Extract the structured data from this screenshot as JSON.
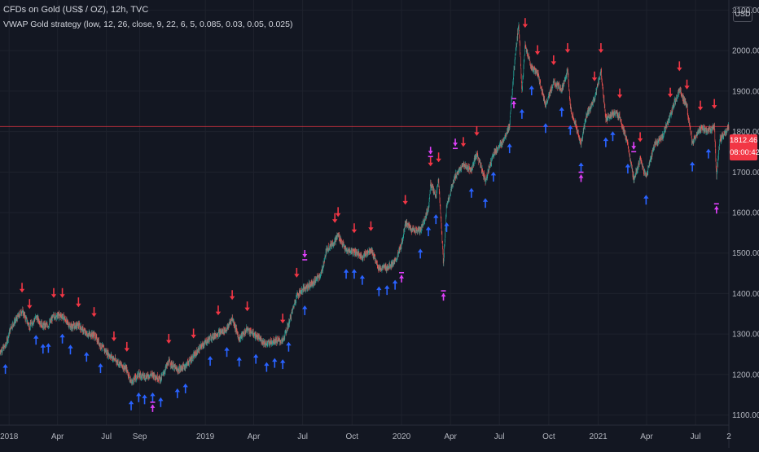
{
  "header": {
    "title": "CFDs on Gold (US$ / OZ), 12h, TVC",
    "indicator": "VWAP Gold strategy (low, 12, 26, close, 9, 22, 6, 5, 0.085, 0.03, 0.05, 0.025)"
  },
  "currency_button": "USD",
  "last_price": {
    "price": "1812.46",
    "countdown": "08:00:42"
  },
  "colors": {
    "background": "#131722",
    "grid": "#1e222d",
    "up": "#26a69a",
    "down": "#ef5350",
    "buy_arrow": "#2962ff",
    "sell_arrow": "#f23645",
    "exit_marker": "#e040fb",
    "price_line": "#f23645"
  },
  "chart_data": {
    "type": "line",
    "series": [
      {
        "values": [
          [
            "2017-12-15",
            1257
          ],
          [
            "2017-12-25",
            1270
          ],
          [
            "2018-01-05",
            1320
          ],
          [
            "2018-01-15",
            1337
          ],
          [
            "2018-01-25",
            1358
          ],
          [
            "2018-02-08",
            1318
          ],
          [
            "2018-02-20",
            1342
          ],
          [
            "2018-03-05",
            1320
          ],
          [
            "2018-03-15",
            1322
          ],
          [
            "2018-03-25",
            1345
          ],
          [
            "2018-04-10",
            1345
          ],
          [
            "2018-04-25",
            1318
          ],
          [
            "2018-05-10",
            1322
          ],
          [
            "2018-05-25",
            1300
          ],
          [
            "2018-06-08",
            1298
          ],
          [
            "2018-06-20",
            1272
          ],
          [
            "2018-07-01",
            1255
          ],
          [
            "2018-07-15",
            1238
          ],
          [
            "2018-07-30",
            1222
          ],
          [
            "2018-08-08",
            1212
          ],
          [
            "2018-08-16",
            1180
          ],
          [
            "2018-08-30",
            1200
          ],
          [
            "2018-09-10",
            1195
          ],
          [
            "2018-09-25",
            1200
          ],
          [
            "2018-10-10",
            1188
          ],
          [
            "2018-10-25",
            1232
          ],
          [
            "2018-11-10",
            1210
          ],
          [
            "2018-11-25",
            1222
          ],
          [
            "2018-12-10",
            1245
          ],
          [
            "2018-12-25",
            1270
          ],
          [
            "2019-01-10",
            1290
          ],
          [
            "2019-01-25",
            1302
          ],
          [
            "2019-02-10",
            1312
          ],
          [
            "2019-02-20",
            1340
          ],
          [
            "2019-03-05",
            1288
          ],
          [
            "2019-03-20",
            1312
          ],
          [
            "2019-04-05",
            1295
          ],
          [
            "2019-04-25",
            1275
          ],
          [
            "2019-05-10",
            1285
          ],
          [
            "2019-05-25",
            1282
          ],
          [
            "2019-06-05",
            1325
          ],
          [
            "2019-06-20",
            1395
          ],
          [
            "2019-07-05",
            1415
          ],
          [
            "2019-07-20",
            1425
          ],
          [
            "2019-08-05",
            1450
          ],
          [
            "2019-08-15",
            1510
          ],
          [
            "2019-08-30",
            1530
          ],
          [
            "2019-09-05",
            1545
          ],
          [
            "2019-09-20",
            1505
          ],
          [
            "2019-10-05",
            1505
          ],
          [
            "2019-10-20",
            1490
          ],
          [
            "2019-11-05",
            1510
          ],
          [
            "2019-11-20",
            1462
          ],
          [
            "2019-12-05",
            1465
          ],
          [
            "2019-12-20",
            1478
          ],
          [
            "2020-01-01",
            1520
          ],
          [
            "2020-01-08",
            1575
          ],
          [
            "2020-01-20",
            1558
          ],
          [
            "2020-02-05",
            1555
          ],
          [
            "2020-02-20",
            1610
          ],
          [
            "2020-02-24",
            1670
          ],
          [
            "2020-03-05",
            1640
          ],
          [
            "2020-03-10",
            1680
          ],
          [
            "2020-03-19",
            1475
          ],
          [
            "2020-03-25",
            1620
          ],
          [
            "2020-04-10",
            1690
          ],
          [
            "2020-04-25",
            1718
          ],
          [
            "2020-05-10",
            1705
          ],
          [
            "2020-05-20",
            1745
          ],
          [
            "2020-06-05",
            1680
          ],
          [
            "2020-06-20",
            1745
          ],
          [
            "2020-07-05",
            1770
          ],
          [
            "2020-07-20",
            1815
          ],
          [
            "2020-07-28",
            1950
          ],
          [
            "2020-08-06",
            2068
          ],
          [
            "2020-08-12",
            1900
          ],
          [
            "2020-08-18",
            2012
          ],
          [
            "2020-08-30",
            1958
          ],
          [
            "2020-09-10",
            1945
          ],
          [
            "2020-09-25",
            1865
          ],
          [
            "2020-10-10",
            1920
          ],
          [
            "2020-10-25",
            1905
          ],
          [
            "2020-11-05",
            1950
          ],
          [
            "2020-11-10",
            1860
          ],
          [
            "2020-11-30",
            1768
          ],
          [
            "2020-12-10",
            1840
          ],
          [
            "2020-12-25",
            1880
          ],
          [
            "2021-01-06",
            1950
          ],
          [
            "2021-01-15",
            1830
          ],
          [
            "2021-01-28",
            1845
          ],
          [
            "2021-02-10",
            1838
          ],
          [
            "2021-02-25",
            1765
          ],
          [
            "2021-03-08",
            1682
          ],
          [
            "2021-03-20",
            1730
          ],
          [
            "2021-03-31",
            1688
          ],
          [
            "2021-04-15",
            1768
          ],
          [
            "2021-05-01",
            1790
          ],
          [
            "2021-05-15",
            1840
          ],
          [
            "2021-06-01",
            1905
          ],
          [
            "2021-06-15",
            1860
          ],
          [
            "2021-06-25",
            1770
          ],
          [
            "2021-07-10",
            1808
          ],
          [
            "2021-07-25",
            1802
          ],
          [
            "2021-08-05",
            1812
          ],
          [
            "2021-08-09",
            1690
          ],
          [
            "2021-08-15",
            1780
          ],
          [
            "2021-08-25",
            1795
          ],
          [
            "2021-09-01",
            1812
          ]
        ]
      }
    ],
    "xlim": [
      "2017-12-15",
      "2021-09-01"
    ],
    "ylim": [
      1075,
      2125
    ],
    "x_ticks": [
      [
        "2018-01-01",
        "2018"
      ],
      [
        "2018-04-01",
        "Apr"
      ],
      [
        "2018-07-01",
        "Jul"
      ],
      [
        "2018-09-01",
        "Sep"
      ],
      [
        "2019-01-01",
        "2019"
      ],
      [
        "2019-04-01",
        "Apr"
      ],
      [
        "2019-07-01",
        "Jul"
      ],
      [
        "2019-10-01",
        "Oct"
      ],
      [
        "2020-01-01",
        "2020"
      ],
      [
        "2020-04-01",
        "Apr"
      ],
      [
        "2020-07-01",
        "Jul"
      ],
      [
        "2020-10-01",
        "Oct"
      ],
      [
        "2021-01-01",
        "2021"
      ],
      [
        "2021-04-01",
        "Apr"
      ],
      [
        "2021-07-01",
        "Jul"
      ],
      [
        "2021-09-01",
        "2"
      ]
    ],
    "y_ticks": [
      1100.0,
      1200.0,
      1300.0,
      1400.0,
      1500.0,
      1600.0,
      1700.0,
      1800.0,
      1900.0,
      2000.0,
      2100.0
    ],
    "last_price": 1812.46,
    "grid": true,
    "buy_signals": [
      "2017-12-25",
      "2018-02-20",
      "2018-03-05",
      "2018-03-15",
      "2018-04-10",
      "2018-04-25",
      "2018-05-25",
      "2018-06-20",
      "2018-08-16",
      "2018-08-30",
      "2018-09-10",
      "2018-09-25",
      "2018-10-10",
      "2018-11-10",
      "2018-11-25",
      "2019-01-10",
      "2019-02-10",
      "2019-03-05",
      "2019-04-05",
      "2019-04-25",
      "2019-05-10",
      "2019-05-25",
      "2019-06-05",
      "2019-07-05",
      "2019-09-20",
      "2019-10-05",
      "2019-10-20",
      "2019-11-20",
      "2019-12-05",
      "2019-12-20",
      "2020-02-05",
      "2020-02-20",
      "2020-03-05",
      "2020-03-25",
      "2020-05-10",
      "2020-06-05",
      "2020-06-20",
      "2020-07-20",
      "2020-08-12",
      "2020-08-30",
      "2020-09-25",
      "2020-10-25",
      "2020-11-10",
      "2020-11-30",
      "2021-01-15",
      "2021-01-28",
      "2021-02-25",
      "2021-03-31",
      "2021-06-25",
      "2021-07-25"
    ],
    "sell_signals": [
      "2018-01-25",
      "2018-02-08",
      "2018-03-25",
      "2018-04-10",
      "2018-05-10",
      "2018-06-08",
      "2018-07-15",
      "2018-08-08",
      "2018-10-25",
      "2018-12-10",
      "2019-01-25",
      "2019-02-20",
      "2019-03-20",
      "2019-05-25",
      "2019-06-20",
      "2019-08-30",
      "2019-09-05",
      "2019-10-05",
      "2019-11-05",
      "2020-01-08",
      "2020-02-24",
      "2020-03-10",
      "2020-04-25",
      "2020-05-20",
      "2020-08-18",
      "2020-09-10",
      "2020-10-10",
      "2020-11-05",
      "2020-12-25",
      "2021-01-06",
      "2021-02-10",
      "2021-03-20",
      "2021-05-15",
      "2021-06-01",
      "2021-06-15",
      "2021-07-10",
      "2021-08-05"
    ],
    "exit_markers": [
      "2018-09-25",
      "2019-07-05",
      "2020-01-01",
      "2020-02-24",
      "2020-03-19",
      "2020-04-10",
      "2020-07-28",
      "2020-08-06",
      "2020-11-30",
      "2021-03-08",
      "2021-08-09"
    ]
  }
}
